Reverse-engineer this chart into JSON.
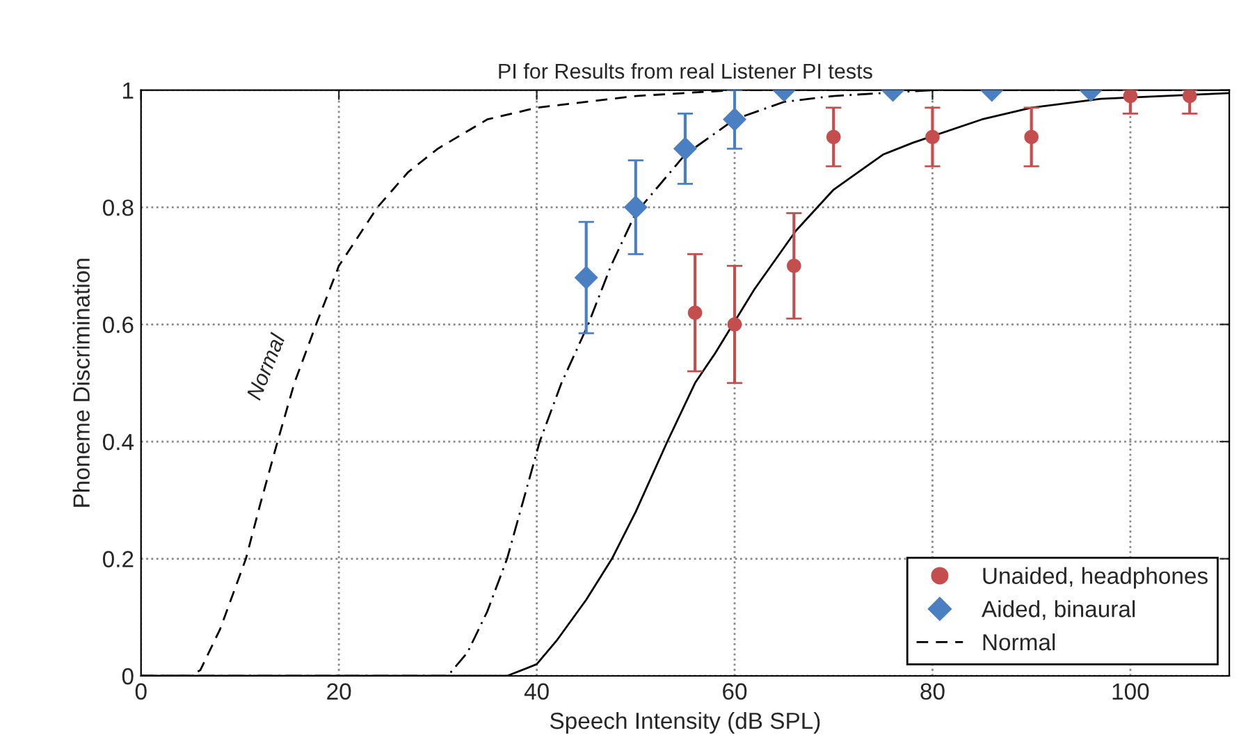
{
  "chart_data": {
    "type": "scatter",
    "title": "PI for Results from real Listener PI tests",
    "xlabel": "Speech Intensity (dB SPL)",
    "ylabel": "Phoneme Discrimination",
    "xlim": [
      0,
      110
    ],
    "ylim": [
      0,
      1
    ],
    "xticks": [
      0,
      20,
      40,
      60,
      80,
      100
    ],
    "yticks": [
      0,
      0.2,
      0.4,
      0.6,
      0.8,
      1
    ],
    "grid": true,
    "legend": "bottom right",
    "series": [
      {
        "name": "Unaided, headphones",
        "marker": "circle",
        "color": "#c44e4e",
        "x": [
          56,
          60,
          66,
          70,
          80,
          90,
          100,
          106
        ],
        "values": [
          0.62,
          0.6,
          0.7,
          0.92,
          0.92,
          0.92,
          0.99,
          0.99
        ],
        "errors": [
          [
            0.52,
            0.72
          ],
          [
            0.5,
            0.7
          ],
          [
            0.61,
            0.79
          ],
          [
            0.87,
            0.97
          ],
          [
            0.87,
            0.97
          ],
          [
            0.87,
            0.97
          ],
          [
            0.96,
            1.0
          ],
          [
            0.96,
            1.0
          ]
        ]
      },
      {
        "name": "Aided, binaural",
        "marker": "diamond",
        "color": "#4a7fc1",
        "x": [
          45,
          50,
          55,
          60,
          65,
          76,
          86,
          96
        ],
        "values": [
          0.68,
          0.8,
          0.9,
          0.95,
          1,
          1,
          1,
          1
        ],
        "errors": [
          [
            0.585,
            0.775
          ],
          [
            0.72,
            0.88
          ],
          [
            0.84,
            0.96
          ],
          [
            0.9,
            1.0
          ],
          null,
          null,
          null,
          null
        ]
      },
      {
        "name": "Normal",
        "type": "line",
        "line_style": "dashed",
        "color": "#000000",
        "x": [
          0,
          5,
          6,
          8,
          10.6,
          12,
          13.8,
          15.5,
          17.7,
          20,
          23.9,
          27,
          30,
          35,
          40,
          50,
          60,
          80,
          110
        ],
        "values": [
          0,
          0,
          0.01,
          0.08,
          0.2,
          0.29,
          0.4,
          0.5,
          0.6,
          0.7,
          0.8,
          0.86,
          0.9,
          0.95,
          0.97,
          0.99,
          1,
          1,
          1
        ]
      },
      {
        "type": "line",
        "line_style": "dashdot",
        "color": "#000000",
        "x": [
          0,
          31,
          33,
          35,
          37,
          40.3,
          42.5,
          45.2,
          47.5,
          50,
          55,
          60,
          65,
          70,
          80,
          110
        ],
        "values": [
          0,
          0,
          0.04,
          0.11,
          0.2,
          0.4,
          0.5,
          0.6,
          0.7,
          0.79,
          0.89,
          0.95,
          0.98,
          0.99,
          1,
          1
        ]
      },
      {
        "type": "line",
        "line_style": "solid",
        "color": "#000000",
        "x": [
          0,
          37,
          40,
          42,
          45,
          47.6,
          50,
          53.2,
          56,
          58,
          62,
          66.2,
          70,
          75,
          78,
          85,
          90,
          97,
          110
        ],
        "values": [
          0,
          0,
          0.02,
          0.06,
          0.13,
          0.2,
          0.28,
          0.4,
          0.5,
          0.55,
          0.66,
          0.76,
          0.83,
          0.89,
          0.91,
          0.95,
          0.97,
          0.985,
          0.995
        ]
      }
    ],
    "annotations": [
      {
        "text": "Normal",
        "x": 15.5,
        "y": 0.5
      }
    ]
  }
}
